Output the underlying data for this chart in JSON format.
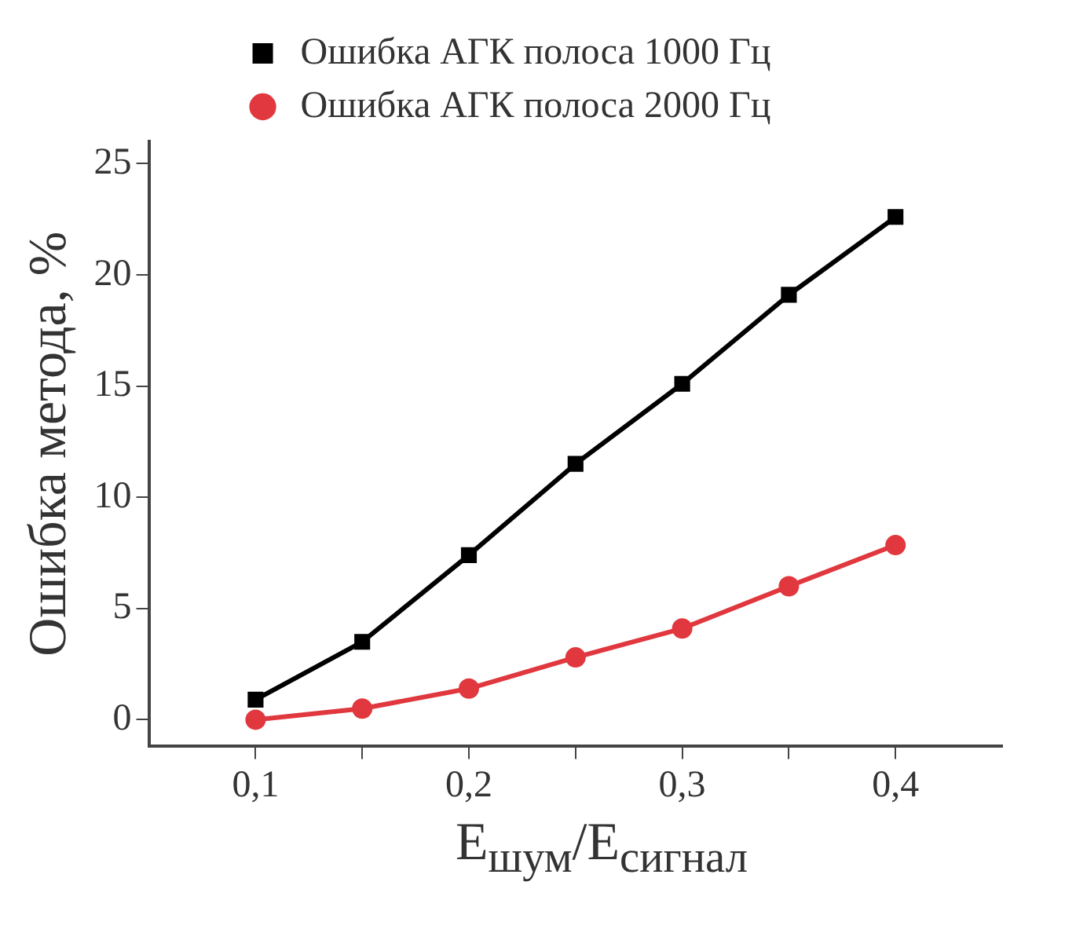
{
  "chart_data": {
    "type": "line",
    "xlabel": "E$_{шум}$/E$_{сигнал}$",
    "ylabel": "Ошибка метода, %",
    "x": [
      0.1,
      0.15,
      0.2,
      0.25,
      0.3,
      0.35,
      0.4
    ],
    "series": [
      {
        "name": "Ошибка АГК полоса 1000 Гц",
        "color": "#000000",
        "marker": "square",
        "values": [
          0.9,
          3.5,
          7.4,
          11.5,
          15.1,
          19.1,
          22.6
        ]
      },
      {
        "name": "Ошибка АГК полоса 2000 Гц",
        "color": "#e0383e",
        "marker": "circle",
        "values": [
          0,
          0.5,
          1.4,
          2.8,
          4.1,
          6.0,
          7.85
        ]
      }
    ],
    "xlim": [
      0.05,
      0.45
    ],
    "xticks": [
      {
        "value": 0.1,
        "label": "0,1"
      },
      {
        "value": 0.15,
        "label": null
      },
      {
        "value": 0.2,
        "label": "0,2"
      },
      {
        "value": 0.25,
        "label": null
      },
      {
        "value": 0.3,
        "label": "0,3"
      },
      {
        "value": 0.35,
        "label": null
      },
      {
        "value": 0.4,
        "label": "0,4"
      }
    ],
    "ylim": [
      -1.2,
      26
    ],
    "yticks": [
      0,
      5,
      10,
      15,
      20,
      25
    ],
    "grid": false,
    "legend": "top",
    "line_style": "solid"
  }
}
